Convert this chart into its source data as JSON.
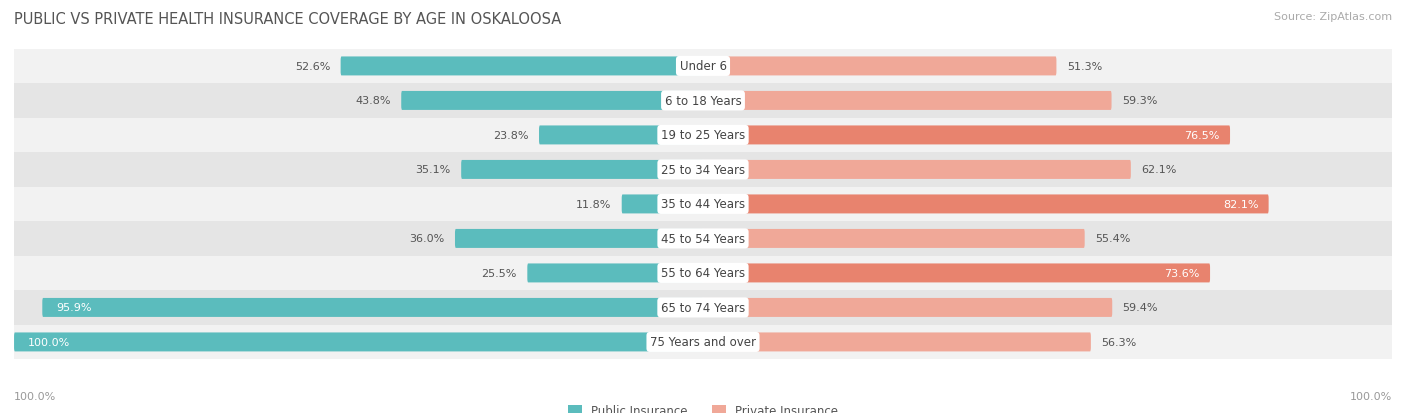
{
  "title": "PUBLIC VS PRIVATE HEALTH INSURANCE COVERAGE BY AGE IN OSKALOOSA",
  "source": "Source: ZipAtlas.com",
  "categories": [
    "Under 6",
    "6 to 18 Years",
    "19 to 25 Years",
    "25 to 34 Years",
    "35 to 44 Years",
    "45 to 54 Years",
    "55 to 64 Years",
    "65 to 74 Years",
    "75 Years and over"
  ],
  "public_values": [
    52.6,
    43.8,
    23.8,
    35.1,
    11.8,
    36.0,
    25.5,
    95.9,
    100.0
  ],
  "private_values": [
    51.3,
    59.3,
    76.5,
    62.1,
    82.1,
    55.4,
    73.6,
    59.4,
    56.3
  ],
  "public_color": "#5bbcbd",
  "private_color": "#e8836e",
  "private_color_light": "#f0a898",
  "row_bg_light": "#f2f2f2",
  "row_bg_dark": "#e5e5e5",
  "title_fontsize": 10.5,
  "source_fontsize": 8,
  "label_fontsize": 8.5,
  "value_fontsize": 8,
  "max_value": 100.0,
  "background_color": "#ffffff",
  "title_color": "#555555",
  "source_color": "#aaaaaa",
  "axis_label_color": "#999999",
  "inside_label_threshold_public": 85,
  "inside_label_threshold_private": 70
}
